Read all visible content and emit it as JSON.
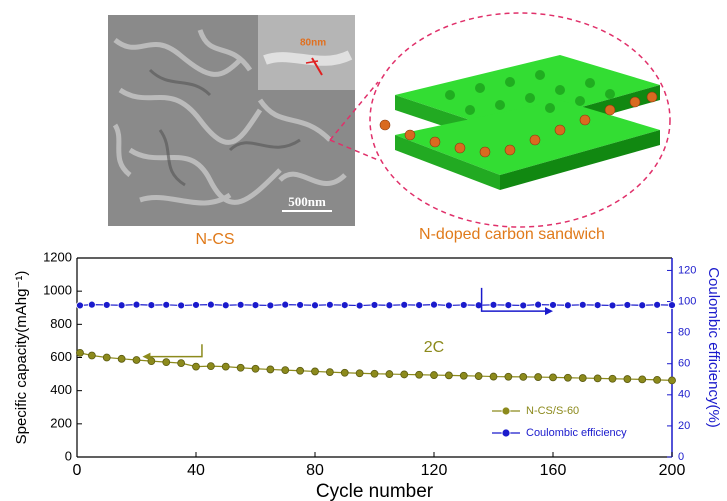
{
  "figure": {
    "sem_label": "N-CS",
    "scale_bar": "500nm",
    "inset_scale": "80nm",
    "schematic_label": "N-doped carbon sandwich"
  },
  "chart_data": {
    "type": "line",
    "x_label": "Cycle number",
    "y_label": "Specific capacity(mAhg⁻¹)",
    "y2_label": "Coulombic efficiency(%)",
    "annotation": "2C",
    "xlim": [
      0,
      200
    ],
    "xticks": [
      0,
      40,
      80,
      120,
      160,
      200
    ],
    "ylim": [
      0,
      1200
    ],
    "yticks": [
      0,
      200,
      400,
      600,
      800,
      1000,
      1200
    ],
    "y2lim": [
      0,
      128
    ],
    "y2ticks": [
      0,
      20,
      40,
      60,
      80,
      100,
      120
    ],
    "grid": false,
    "legend": "lower right",
    "x": [
      1,
      5,
      10,
      15,
      20,
      25,
      30,
      35,
      40,
      45,
      50,
      55,
      60,
      65,
      70,
      75,
      80,
      85,
      90,
      95,
      100,
      105,
      110,
      115,
      120,
      125,
      130,
      135,
      140,
      145,
      150,
      155,
      160,
      165,
      170,
      175,
      180,
      185,
      190,
      195,
      200
    ],
    "series": [
      {
        "name": "N-CS/S-60",
        "color": "#8c8a1c",
        "values": [
          628,
          612,
          600,
          592,
          585,
          578,
          572,
          566,
          545,
          548,
          545,
          538,
          532,
          528,
          524,
          520,
          516,
          512,
          508,
          505,
          502,
          500,
          498,
          496,
          494,
          492,
          490,
          488,
          485,
          484,
          483,
          482,
          480,
          478,
          476,
          474,
          472,
          470,
          468,
          465,
          462
        ]
      },
      {
        "name": "Coulombic efficiency",
        "color": "#1a1acc",
        "axis": "y2",
        "values": [
          97.5,
          98,
          97.8,
          97.6,
          98,
          97.7,
          97.9,
          97.5,
          97.8,
          98,
          97.6,
          97.9,
          97.7,
          97.5,
          98,
          97.8,
          97.6,
          97.9,
          97.7,
          97.4,
          97.8,
          97.6,
          97.9,
          97.7,
          98,
          97.5,
          97.8,
          97.6,
          97.9,
          97.7,
          97.5,
          98,
          97.8,
          97.6,
          97.9,
          97.7,
          97.5,
          97.8,
          97.6,
          97.9,
          97.7
        ]
      }
    ]
  }
}
